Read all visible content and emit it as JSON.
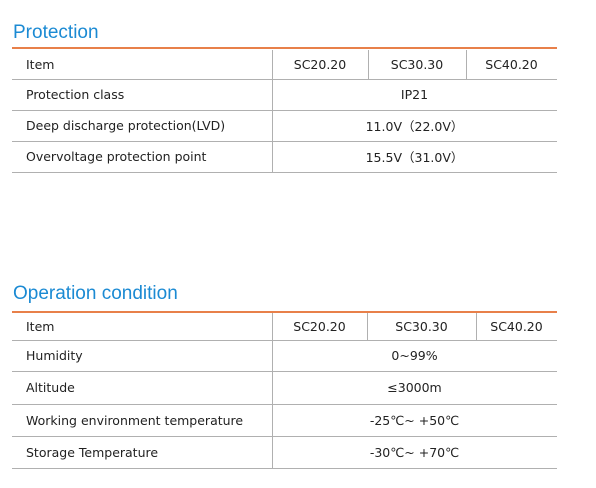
{
  "sections": [
    {
      "title": "Protection",
      "header": [
        "Item",
        "SC20.20",
        "SC30.30",
        "SC40.20"
      ],
      "rows": [
        [
          "Protection class",
          "IP21"
        ],
        [
          "Deep discharge protection(LVD)",
          "11.0V（22.0V）"
        ],
        [
          "Overvoltage protection point",
          "15.5V（31.0V）"
        ]
      ]
    },
    {
      "title": "Operation condition",
      "header": [
        "Item",
        "SC20.20",
        "SC30.30",
        "SC40.20"
      ],
      "rows": [
        [
          "Humidity",
          "0~99%"
        ],
        [
          "Altitude",
          "≤3000m"
        ],
        [
          "Working environment temperature",
          "-25℃~ +50℃"
        ],
        [
          "Storage Temperature",
          "-30℃~ +70℃"
        ]
      ]
    }
  ]
}
